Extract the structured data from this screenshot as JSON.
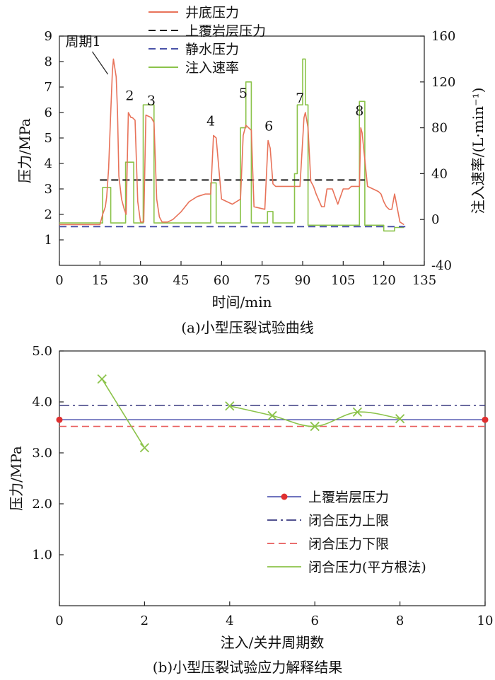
{
  "chart_data": [
    {
      "type": "line",
      "caption": "(a)小型压裂试验曲线",
      "xlabel": "时间/min",
      "ylabel": "压力/MPa",
      "y2label": "注入速率/(L·min⁻¹)",
      "xlim": [
        0,
        135
      ],
      "ylim": [
        0,
        9
      ],
      "y2lim": [
        -40,
        160
      ],
      "xticks": [
        0,
        15,
        30,
        45,
        60,
        75,
        90,
        105,
        120,
        135
      ],
      "yticks": [
        1,
        2,
        3,
        4,
        5,
        6,
        7,
        8,
        9
      ],
      "y2ticks": [
        -40,
        0,
        40,
        80,
        120,
        160
      ],
      "legend_position": "top-center",
      "annotations": [
        {
          "label": "周期1",
          "x": 19.5,
          "y": 8.0
        },
        {
          "label": "2",
          "x": 26,
          "y": 6.1
        },
        {
          "label": "3",
          "x": 34,
          "y": 5.9
        },
        {
          "label": "4",
          "x": 56,
          "y": 5.1
        },
        {
          "label": "5",
          "x": 68,
          "y": 6.2
        },
        {
          "label": "6",
          "x": 77.5,
          "y": 4.9
        },
        {
          "label": "7",
          "x": 89,
          "y": 6.0
        },
        {
          "label": "8",
          "x": 111,
          "y": 5.5
        }
      ],
      "series": [
        {
          "name": "井底压力",
          "axis": "left",
          "color": "#e8735a",
          "style": "solid",
          "x": [
            0,
            15,
            16,
            17,
            17.5,
            18.2,
            19,
            19.6,
            20,
            21,
            21.5,
            22,
            23,
            24,
            24.7,
            25.5,
            26.5,
            27,
            28,
            29,
            30,
            31.2,
            32,
            34,
            35,
            36,
            37,
            38,
            40,
            42,
            45,
            48,
            51,
            54,
            56,
            57,
            58,
            60,
            64,
            67,
            68,
            69,
            70,
            71,
            72,
            76,
            77.2,
            78,
            79,
            80,
            83,
            86,
            89,
            90.5,
            91,
            92,
            93,
            94,
            95,
            97,
            98,
            99,
            101,
            103,
            105,
            107,
            108,
            111,
            111.5,
            112,
            114,
            116,
            118,
            119,
            120,
            121,
            122,
            123,
            124,
            126,
            127.5
          ],
          "y": [
            1.6,
            1.6,
            2.0,
            2.3,
            2.7,
            3.8,
            6.0,
            7.6,
            8.1,
            7.4,
            6.0,
            3.5,
            2.6,
            2.2,
            2.0,
            6.0,
            5.8,
            5.8,
            5.7,
            2.5,
            1.7,
            1.7,
            5.9,
            5.8,
            5.6,
            2.6,
            1.9,
            1.7,
            1.7,
            1.8,
            2.1,
            2.5,
            2.7,
            2.8,
            2.8,
            5.1,
            5.0,
            2.6,
            2.4,
            2.6,
            5.1,
            5.5,
            5.4,
            5.3,
            2.3,
            2.2,
            4.9,
            4.6,
            3.2,
            3.1,
            3.1,
            3.1,
            3.1,
            5.8,
            6.0,
            5.4,
            3.3,
            3.1,
            2.8,
            2.3,
            2.3,
            3.0,
            3.0,
            2.4,
            3.0,
            3.0,
            3.1,
            3.1,
            5.4,
            5.2,
            3.1,
            3.0,
            2.9,
            2.8,
            2.5,
            2.3,
            2.2,
            2.2,
            2.8,
            1.7,
            1.6
          ]
        },
        {
          "name": "上覆岩层压力",
          "axis": "left",
          "color": "#1a1a1a",
          "style": "dashed",
          "x": [
            15,
            113
          ],
          "y": [
            3.35,
            3.35
          ]
        },
        {
          "name": "静水压力",
          "axis": "left",
          "color": "#4a52a8",
          "style": "dashed",
          "x": [
            0,
            128
          ],
          "y": [
            1.52,
            1.52
          ]
        },
        {
          "name": "注入速率",
          "axis": "right",
          "color": "#8bc34a",
          "style": "solid",
          "x": [
            0,
            16,
            16,
            19,
            19,
            24.5,
            24.5,
            27.5,
            27.5,
            31,
            31,
            35,
            35,
            36,
            36,
            56,
            56,
            58,
            58,
            67,
            67,
            69,
            69,
            71,
            71,
            77,
            77,
            79,
            79,
            87,
            87,
            88,
            88,
            90,
            90,
            91,
            91,
            92,
            92,
            95,
            95,
            100,
            100,
            104,
            104,
            111,
            111,
            113,
            113,
            120,
            120,
            124,
            124,
            127.5
          ],
          "y": [
            -3,
            -3,
            28,
            28,
            -3,
            -3,
            50,
            50,
            -3,
            -3,
            100,
            100,
            -3,
            -3,
            -3,
            -3,
            32,
            32,
            -3,
            -3,
            80,
            80,
            120,
            120,
            -3,
            -3,
            7,
            7,
            -3,
            -3,
            40,
            40,
            100,
            100,
            140,
            140,
            100,
            100,
            -5,
            -5,
            -5,
            -5,
            -5,
            -5,
            -5,
            -5,
            103,
            103,
            -5,
            -5,
            -10,
            -10,
            -7,
            -7
          ]
        }
      ]
    },
    {
      "type": "line",
      "caption": "(b)小型压裂试验应力解释结果",
      "xlabel": "注入/关井周期数",
      "ylabel": "压力/MPa",
      "xlim": [
        0,
        10
      ],
      "ylim": [
        0,
        5.0
      ],
      "xticks": [
        0,
        2,
        4,
        6,
        8,
        10
      ],
      "yticks": [
        1.0,
        2.0,
        3.0,
        4.0,
        5.0
      ],
      "legend_position": "lower-right",
      "series": [
        {
          "name": "上覆岩层压力",
          "color": "#5a5fb5",
          "style": "solid",
          "marker": "circle",
          "marker_color": "#e03030",
          "x": [
            0,
            10
          ],
          "y": [
            3.65,
            3.65
          ]
        },
        {
          "name": "闭合压力上限",
          "color": "#3a3a80",
          "style": "dashdot",
          "x": [
            0,
            10
          ],
          "y": [
            3.93,
            3.93
          ]
        },
        {
          "name": "闭合压力下限",
          "color": "#e85a5a",
          "style": "dashed",
          "x": [
            0,
            10
          ],
          "y": [
            3.52,
            3.52
          ]
        },
        {
          "name": "闭合压力(平方根法)",
          "color": "#8bc34a",
          "style": "solid",
          "marker": "x",
          "segments": [
            {
              "x": [
                1,
                2
              ],
              "y": [
                4.45,
                3.1
              ]
            },
            {
              "x": [
                4,
                5,
                6,
                7,
                8
              ],
              "y": [
                3.92,
                3.73,
                3.52,
                3.8,
                3.67
              ]
            }
          ]
        }
      ]
    }
  ]
}
